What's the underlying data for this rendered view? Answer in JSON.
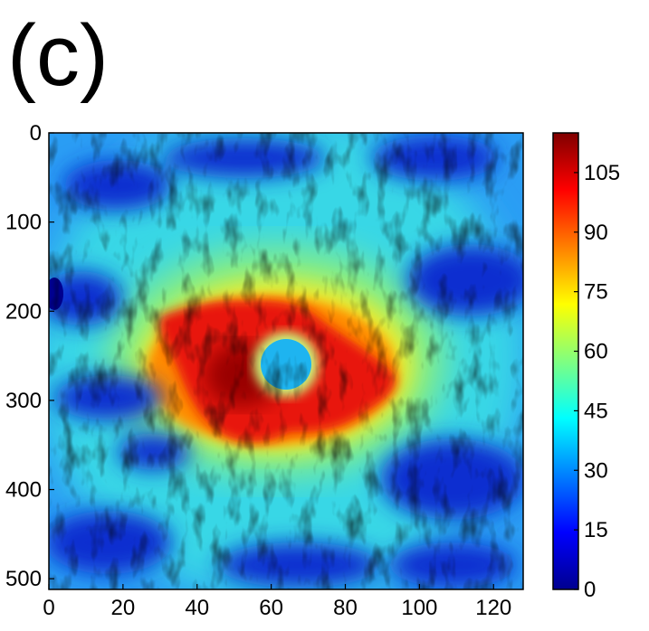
{
  "figure": {
    "panel_label": "(c)"
  },
  "chart_data": {
    "type": "heatmap",
    "title": "",
    "xlabel": "",
    "ylabel": "",
    "xlim": [
      0,
      128
    ],
    "ylim": [
      0,
      512
    ],
    "y_reversed": true,
    "x_ticks": [
      0,
      20,
      40,
      60,
      80,
      100,
      120
    ],
    "y_ticks": [
      0,
      100,
      200,
      300,
      400,
      500
    ],
    "colormap": "jet",
    "colorbar": {
      "range": [
        0,
        115
      ],
      "ticks": [
        0,
        15,
        30,
        45,
        60,
        75,
        90,
        105
      ]
    },
    "features": [
      {
        "name": "hot-region",
        "x": [
          28,
          95
        ],
        "y": [
          195,
          350
        ],
        "peak_value": 110
      },
      {
        "name": "central-hole",
        "x_center": 64,
        "y_center": 260,
        "radius_x": 7,
        "value": 35
      }
    ],
    "colors": {
      "low": "#00008f",
      "high": "#800000"
    }
  }
}
